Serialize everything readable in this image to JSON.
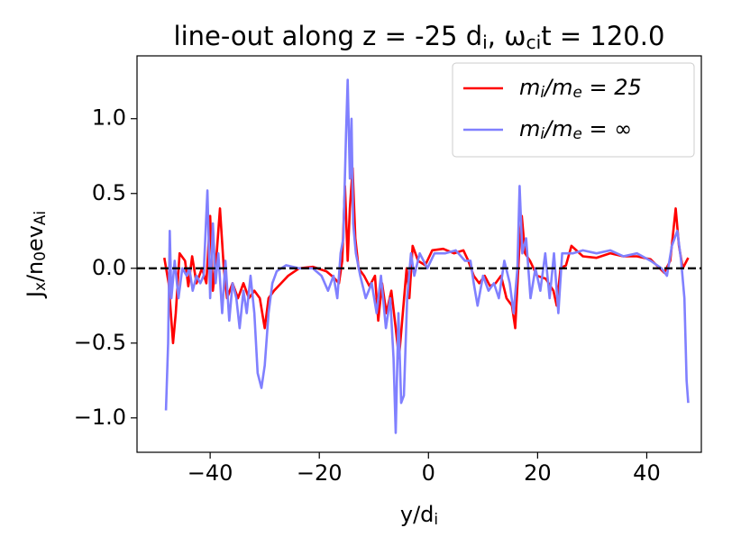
{
  "chart_data": {
    "type": "line",
    "title": "line-out along z = -25 d_i, ω_{ci}t = 120.0",
    "xlabel": "y/d_i",
    "ylabel": "J_x/n_0ev_{Ai}",
    "xlim": [
      -53.4,
      50.0
    ],
    "ylim": [
      -1.23,
      1.42
    ],
    "xticks": [
      {
        "value": -40,
        "label": "−40"
      },
      {
        "value": -20,
        "label": "−20"
      },
      0,
      20,
      40
    ],
    "yticks": [
      {
        "value": -1.0,
        "label": "−1.0"
      },
      {
        "value": -0.5,
        "label": "−0.5"
      },
      {
        "value": 0.0,
        "label": "0.0"
      },
      0.5,
      {
        "value": 1.0,
        "label": "1.0"
      }
    ],
    "hline": 0,
    "legend": "upper right",
    "series": [
      {
        "name": "m_i/m_e = 25",
        "color": "#ff0000",
        "x": [
          -48.4,
          -47.6,
          -46.8,
          -46.3,
          -45.6,
          -44.6,
          -44.0,
          -43.3,
          -42.5,
          -41.5,
          -40.7,
          -40.0,
          -39.5,
          -38.8,
          -38.2,
          -37.5,
          -36.9,
          -35.9,
          -34.9,
          -33.9,
          -32.9,
          -31.9,
          -30.9,
          -30.0,
          -29.3,
          -28.3,
          -27.0,
          -25.7,
          -23.7,
          -21.2,
          -18.7,
          -17.4,
          -16.4,
          -15.8,
          -15.3,
          -14.8,
          -14.4,
          -13.9,
          -13.4,
          -12.8,
          -11.8,
          -10.8,
          -9.8,
          -9.2,
          -8.5,
          -7.7,
          -6.8,
          -6.0,
          -5.4,
          -4.7,
          -4.0,
          -3.5,
          -2.9,
          -1.9,
          -0.6,
          0.7,
          2.7,
          4.7,
          6.4,
          7.3,
          8.3,
          9.3,
          10.3,
          11.3,
          12.3,
          13.3,
          14.3,
          15.3,
          15.9,
          16.6,
          17.1,
          17.7,
          18.6,
          19.9,
          21.5,
          22.9,
          23.5,
          24.2,
          25.2,
          26.2,
          28.3,
          30.8,
          33.3,
          35.7,
          38.2,
          40.7,
          43.2,
          44.3,
          45.3,
          45.9,
          46.6,
          47.6
        ],
        "values": [
          0.07,
          -0.1,
          -0.5,
          -0.3,
          0.1,
          0.05,
          -0.12,
          0.08,
          -0.1,
          0.0,
          -0.1,
          0.35,
          -0.15,
          0.1,
          0.4,
          0.0,
          -0.2,
          -0.1,
          -0.2,
          -0.1,
          -0.2,
          -0.15,
          -0.2,
          -0.4,
          -0.2,
          -0.15,
          -0.1,
          -0.05,
          0.0,
          0.01,
          -0.02,
          -0.06,
          -0.1,
          0.05,
          0.55,
          0.05,
          0.4,
          0.67,
          0.2,
          0.0,
          -0.05,
          -0.12,
          -0.05,
          -0.35,
          -0.1,
          -0.3,
          -0.15,
          -0.4,
          -0.6,
          -0.3,
          0.0,
          -0.2,
          0.15,
          0.05,
          0.02,
          0.12,
          0.13,
          0.1,
          0.12,
          0.05,
          -0.05,
          -0.1,
          -0.05,
          -0.12,
          -0.1,
          -0.05,
          -0.2,
          -0.25,
          -0.4,
          0.1,
          0.35,
          0.1,
          0.05,
          -0.05,
          -0.07,
          -0.15,
          -0.25,
          0.0,
          0.02,
          0.15,
          0.08,
          0.07,
          0.1,
          0.08,
          0.08,
          0.06,
          -0.03,
          0.05,
          0.4,
          0.15,
          0.0,
          0.07
        ]
      },
      {
        "name": "m_i/m_e = ∞",
        "color": "#8080ff",
        "x": [
          -48.1,
          -47.7,
          -47.4,
          -47.1,
          -46.5,
          -45.8,
          -45.1,
          -44.3,
          -43.8,
          -43.2,
          -42.5,
          -41.8,
          -41.2,
          -40.5,
          -40.0,
          -39.5,
          -39.0,
          -38.5,
          -37.8,
          -37.2,
          -36.5,
          -35.9,
          -35.2,
          -34.6,
          -33.9,
          -33.3,
          -32.6,
          -31.9,
          -31.3,
          -30.6,
          -30.0,
          -29.3,
          -28.6,
          -27.8,
          -26.1,
          -23.7,
          -21.2,
          -19.6,
          -18.4,
          -17.4,
          -16.7,
          -16.1,
          -15.6,
          -15.1,
          -14.8,
          -14.4,
          -14.1,
          -13.8,
          -13.3,
          -12.5,
          -11.5,
          -10.4,
          -9.5,
          -8.7,
          -7.8,
          -7.0,
          -6.4,
          -6.0,
          -5.5,
          -5.0,
          -4.5,
          -3.9,
          -3.2,
          -2.6,
          -1.6,
          -0.2,
          1.1,
          3.1,
          5.0,
          6.7,
          7.7,
          8.3,
          9.0,
          10.0,
          11.0,
          12.0,
          12.9,
          13.9,
          14.9,
          15.6,
          16.3,
          16.7,
          17.2,
          17.9,
          18.7,
          19.6,
          20.5,
          21.4,
          22.2,
          23.0,
          23.8,
          24.5,
          25.5,
          26.5,
          28.3,
          30.8,
          33.3,
          35.7,
          38.2,
          40.7,
          42.7,
          43.7,
          44.6,
          45.6,
          46.3,
          46.9,
          47.3,
          47.6
        ],
        "values": [
          -0.95,
          -0.5,
          0.25,
          -0.2,
          0.05,
          -0.2,
          0.0,
          -0.05,
          0.0,
          -0.15,
          -0.05,
          -0.1,
          -0.05,
          0.52,
          -0.2,
          0.3,
          -0.1,
          0.1,
          -0.3,
          0.05,
          -0.35,
          -0.1,
          -0.2,
          -0.4,
          -0.15,
          -0.3,
          -0.05,
          -0.3,
          -0.7,
          -0.8,
          -0.65,
          -0.3,
          -0.1,
          -0.02,
          0.02,
          0.0,
          0.0,
          -0.05,
          -0.15,
          -0.05,
          -0.2,
          0.1,
          0.2,
          0.9,
          1.26,
          0.6,
          1.0,
          0.3,
          0.1,
          -0.05,
          -0.2,
          -0.1,
          -0.3,
          -0.05,
          -0.4,
          -0.2,
          -0.6,
          -1.1,
          -0.3,
          -0.9,
          -0.85,
          -0.2,
          0.1,
          -0.05,
          0.1,
          0.0,
          0.1,
          0.1,
          0.12,
          0.05,
          0.05,
          -0.1,
          -0.25,
          -0.05,
          -0.15,
          -0.1,
          -0.2,
          0.05,
          -0.1,
          -0.3,
          0.0,
          0.55,
          0.1,
          0.2,
          -0.2,
          0.0,
          -0.15,
          0.1,
          -0.2,
          0.1,
          -0.3,
          0.1,
          0.1,
          0.1,
          0.12,
          0.1,
          0.12,
          0.08,
          0.1,
          0.05,
          0.0,
          -0.05,
          0.15,
          0.25,
          0.05,
          -0.2,
          -0.75,
          -0.9
        ]
      }
    ]
  }
}
